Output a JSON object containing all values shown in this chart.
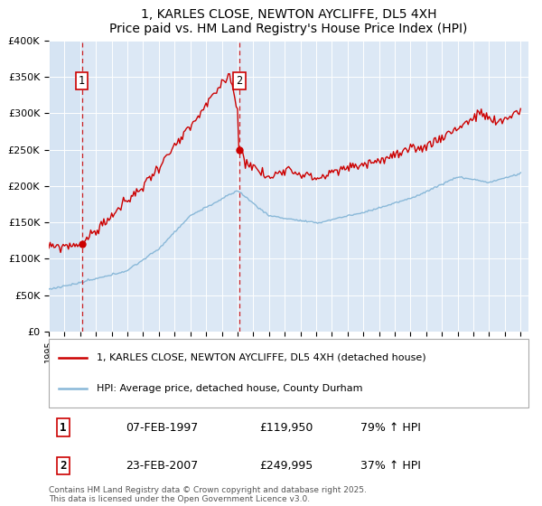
{
  "title": "1, KARLES CLOSE, NEWTON AYCLIFFE, DL5 4XH",
  "subtitle": "Price paid vs. HM Land Registry's House Price Index (HPI)",
  "ylim": [
    0,
    400000
  ],
  "yticks": [
    0,
    50000,
    100000,
    150000,
    200000,
    250000,
    300000,
    350000,
    400000
  ],
  "ytick_labels": [
    "£0",
    "£50K",
    "£100K",
    "£150K",
    "£200K",
    "£250K",
    "£300K",
    "£350K",
    "£400K"
  ],
  "plot_bg_color": "#dce8f5",
  "grid_color": "#ffffff",
  "sale1_date": 1997.1,
  "sale1_price": 119950,
  "sale2_date": 2007.12,
  "sale2_price": 249995,
  "legend_line1": "1, KARLES CLOSE, NEWTON AYCLIFFE, DL5 4XH (detached house)",
  "legend_line2": "HPI: Average price, detached house, County Durham",
  "table_row1": [
    "1",
    "07-FEB-1997",
    "£119,950",
    "79% ↑ HPI"
  ],
  "table_row2": [
    "2",
    "23-FEB-2007",
    "£249,995",
    "37% ↑ HPI"
  ],
  "footer": "Contains HM Land Registry data © Crown copyright and database right 2025.\nThis data is licensed under the Open Government Licence v3.0.",
  "line_color_red": "#cc0000",
  "line_color_blue": "#89b8d8",
  "dashed_color": "#cc0000",
  "shade_color": "#cddff0"
}
